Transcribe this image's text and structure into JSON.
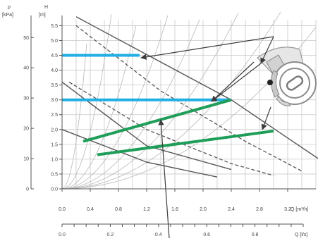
{
  "chart_data": {
    "type": "line",
    "title": "",
    "left_axes": {
      "p_unit": "[kPa]",
      "p_symbol": "p",
      "p_ticks": [
        "0",
        "10",
        "20",
        "30",
        "40",
        "50"
      ],
      "h_unit": "[m]",
      "h_symbol": "H",
      "h_ticks": [
        "0.0",
        "0.5",
        "1.0",
        "1.5",
        "2.0",
        "2.5",
        "3.0",
        "3.5",
        "4.0",
        "4.5",
        "5.0",
        "5.5"
      ]
    },
    "x_axis_main": {
      "label": "Q [m³/h]",
      "ticks": [
        "0.0",
        "0.4",
        "0.8",
        "1.2",
        "1.6",
        "2.0",
        "2.4",
        "2.8",
        "3.2"
      ],
      "lim": [
        0,
        3.6
      ]
    },
    "x_axis_secondary": {
      "label": "Q [l/s]",
      "ticks": [
        "0.0",
        "0.2",
        "0.4",
        "0.6",
        "0.8"
      ],
      "lim": [
        0,
        1.0
      ]
    },
    "ylim_m": [
      0,
      5.7
    ],
    "grid": true,
    "series": [
      {
        "style": "solid-dark",
        "points": [
          [
            0,
            3.6
          ],
          [
            1.2,
            1.45
          ],
          [
            2.4,
            0.65
          ]
        ]
      },
      {
        "style": "solid-dark",
        "points": [
          [
            0,
            2.0
          ],
          [
            1.2,
            0.9
          ],
          [
            2.2,
            0.4
          ]
        ]
      },
      {
        "style": "dashed-dark",
        "points": [
          [
            0.2,
            5.5
          ],
          [
            1.4,
            3.3
          ],
          [
            2.6,
            1.6
          ],
          [
            3.4,
            0.6
          ]
        ]
      },
      {
        "style": "dashed-dark",
        "points": [
          [
            0.1,
            3.6
          ],
          [
            1.2,
            2.0
          ],
          [
            2.4,
            0.85
          ],
          [
            3.0,
            0.45
          ]
        ]
      },
      {
        "style": "solid-dark",
        "points": [
          [
            0.2,
            5.8
          ],
          [
            2.4,
            3.0
          ],
          [
            3.8,
            0.75
          ]
        ]
      },
      {
        "style": "blue",
        "points": [
          [
            0,
            4.5
          ],
          [
            1.1,
            4.5
          ]
        ]
      },
      {
        "style": "blue",
        "points": [
          [
            0,
            3.0
          ],
          [
            2.4,
            3.0
          ]
        ]
      },
      {
        "style": "green",
        "points": [
          [
            0.3,
            1.6
          ],
          [
            2.4,
            3.0
          ]
        ]
      },
      {
        "style": "green",
        "points": [
          [
            0.5,
            1.15
          ],
          [
            3.0,
            1.95
          ]
        ]
      }
    ],
    "colors": {
      "blue": "#22aee3",
      "green": "#1e9e58",
      "dark": "#555555",
      "arrow": "#3c3c3c",
      "pump": "#9a9a9a"
    }
  }
}
